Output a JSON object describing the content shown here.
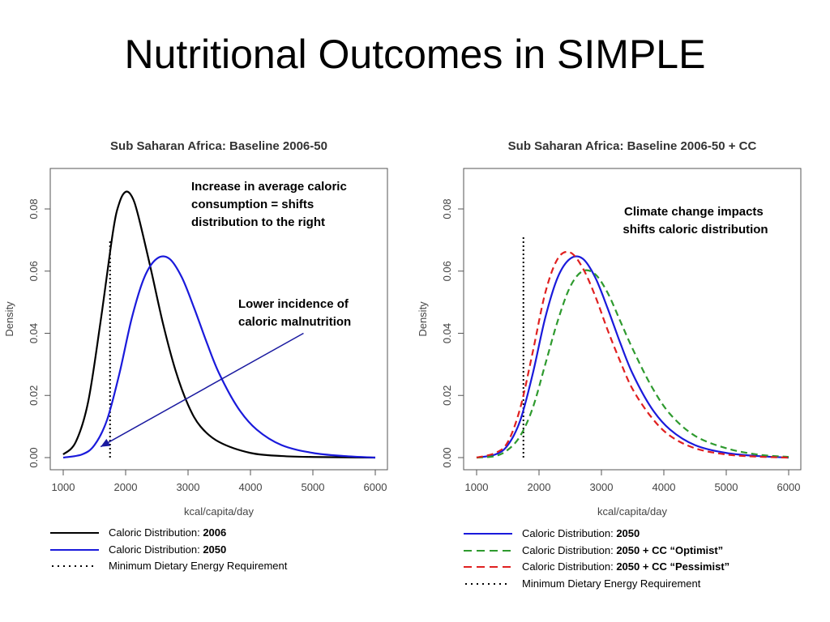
{
  "slide": {
    "title": "Nutritional Outcomes in SIMPLE"
  },
  "chart_data": [
    {
      "type": "line",
      "title": "Sub Saharan Africa: Baseline 2006-50",
      "xlabel": "kcal/capita/day",
      "ylabel": "Density",
      "xlim": [
        1000,
        6000
      ],
      "ylim": [
        0,
        0.09
      ],
      "xticks": [
        "1000",
        "2000",
        "3000",
        "4000",
        "5000",
        "6000"
      ],
      "yticks": [
        "0.00",
        "0.02",
        "0.04",
        "0.06",
        "0.08"
      ],
      "series": [
        {
          "name_prefix": "Caloric Distribution: ",
          "name_bold": "2006",
          "color": "#000000",
          "dash": "solid",
          "x": [
            1000,
            1200,
            1400,
            1600,
            1800,
            1900,
            2000,
            2100,
            2200,
            2400,
            2600,
            2800,
            3000,
            3200,
            3500,
            4000,
            4500,
            5000,
            6000
          ],
          "y": [
            0.001,
            0.005,
            0.018,
            0.044,
            0.073,
            0.082,
            0.0855,
            0.084,
            0.078,
            0.061,
            0.043,
            0.028,
            0.017,
            0.01,
            0.005,
            0.0015,
            0.0005,
            0.0002,
            0.0
          ]
        },
        {
          "name_prefix": "Caloric Distribution: ",
          "name_bold": "2050",
          "color": "#1a1adb",
          "dash": "solid",
          "x": [
            1000,
            1300,
            1500,
            1700,
            1900,
            2100,
            2300,
            2500,
            2700,
            2900,
            3100,
            3300,
            3500,
            3800,
            4100,
            4500,
            5000,
            5500,
            6000
          ],
          "y": [
            0.0,
            0.001,
            0.004,
            0.012,
            0.027,
            0.045,
            0.058,
            0.064,
            0.064,
            0.058,
            0.048,
            0.037,
            0.027,
            0.016,
            0.009,
            0.004,
            0.0015,
            0.0005,
            0.0
          ]
        }
      ],
      "reference_line": {
        "name": "Minimum Dietary Energy Requirement",
        "x": 1750,
        "y_top": 0.07,
        "color": "#000000",
        "dash": "dotted"
      },
      "annotations": [
        {
          "lines": [
            "Increase in average caloric",
            "consumption = shifts",
            "distribution to the right"
          ]
        },
        {
          "lines": [
            "Lower incidence of",
            "caloric malnutrition"
          ],
          "arrow_from": [
            4850,
            0.04
          ],
          "arrow_to": [
            1600,
            0.0035
          ]
        }
      ],
      "legend_placement": "below"
    },
    {
      "type": "line",
      "title": "Sub Saharan Africa: Baseline 2006-50 + CC",
      "xlabel": "kcal/capita/day",
      "ylabel": "Density",
      "xlim": [
        1000,
        6000
      ],
      "ylim": [
        0,
        0.09
      ],
      "xticks": [
        "1000",
        "2000",
        "3000",
        "4000",
        "5000",
        "6000"
      ],
      "yticks": [
        "0.00",
        "0.02",
        "0.04",
        "0.06",
        "0.08"
      ],
      "series": [
        {
          "name_prefix": "Caloric Distribution: ",
          "name_bold": "2050",
          "color": "#1a1adb",
          "dash": "solid",
          "x": [
            1000,
            1300,
            1500,
            1700,
            1900,
            2100,
            2300,
            2500,
            2700,
            2900,
            3100,
            3300,
            3500,
            3800,
            4100,
            4500,
            5000,
            5500,
            6000
          ],
          "y": [
            0.0,
            0.001,
            0.004,
            0.012,
            0.027,
            0.045,
            0.058,
            0.064,
            0.064,
            0.058,
            0.048,
            0.037,
            0.027,
            0.016,
            0.009,
            0.004,
            0.0015,
            0.0005,
            0.0
          ]
        },
        {
          "name_prefix": "Caloric Distribution: ",
          "name_bold": "2050 + CC “Optimist”",
          "color": "#2e9a2e",
          "dash": "dashed",
          "x": [
            1000,
            1300,
            1500,
            1700,
            1900,
            2100,
            2300,
            2500,
            2700,
            2900,
            3100,
            3300,
            3500,
            3800,
            4100,
            4500,
            5000,
            5500,
            6000
          ],
          "y": [
            0.0,
            0.0005,
            0.0025,
            0.007,
            0.016,
            0.03,
            0.044,
            0.055,
            0.06,
            0.059,
            0.053,
            0.044,
            0.035,
            0.023,
            0.014,
            0.007,
            0.003,
            0.001,
            0.0002
          ]
        },
        {
          "name_prefix": "Caloric Distribution: ",
          "name_bold": "2050 + CC “Pessimist”",
          "color": "#e02020",
          "dash": "dashed",
          "x": [
            1000,
            1300,
            1500,
            1700,
            1900,
            2100,
            2300,
            2500,
            2700,
            2900,
            3100,
            3300,
            3500,
            3800,
            4100,
            4500,
            5000,
            5500,
            6000
          ],
          "y": [
            0.0,
            0.0015,
            0.005,
            0.016,
            0.034,
            0.053,
            0.064,
            0.066,
            0.061,
            0.052,
            0.041,
            0.031,
            0.022,
            0.013,
            0.007,
            0.003,
            0.001,
            0.0003,
            0.0
          ]
        }
      ],
      "reference_line": {
        "name": "Minimum Dietary Energy Requirement",
        "x": 1750,
        "y_top": 0.071,
        "color": "#000000",
        "dash": "dotted"
      },
      "annotations": [
        {
          "lines": [
            "Climate change impacts",
            "shifts caloric distribution"
          ]
        }
      ],
      "legend_placement": "below"
    }
  ]
}
